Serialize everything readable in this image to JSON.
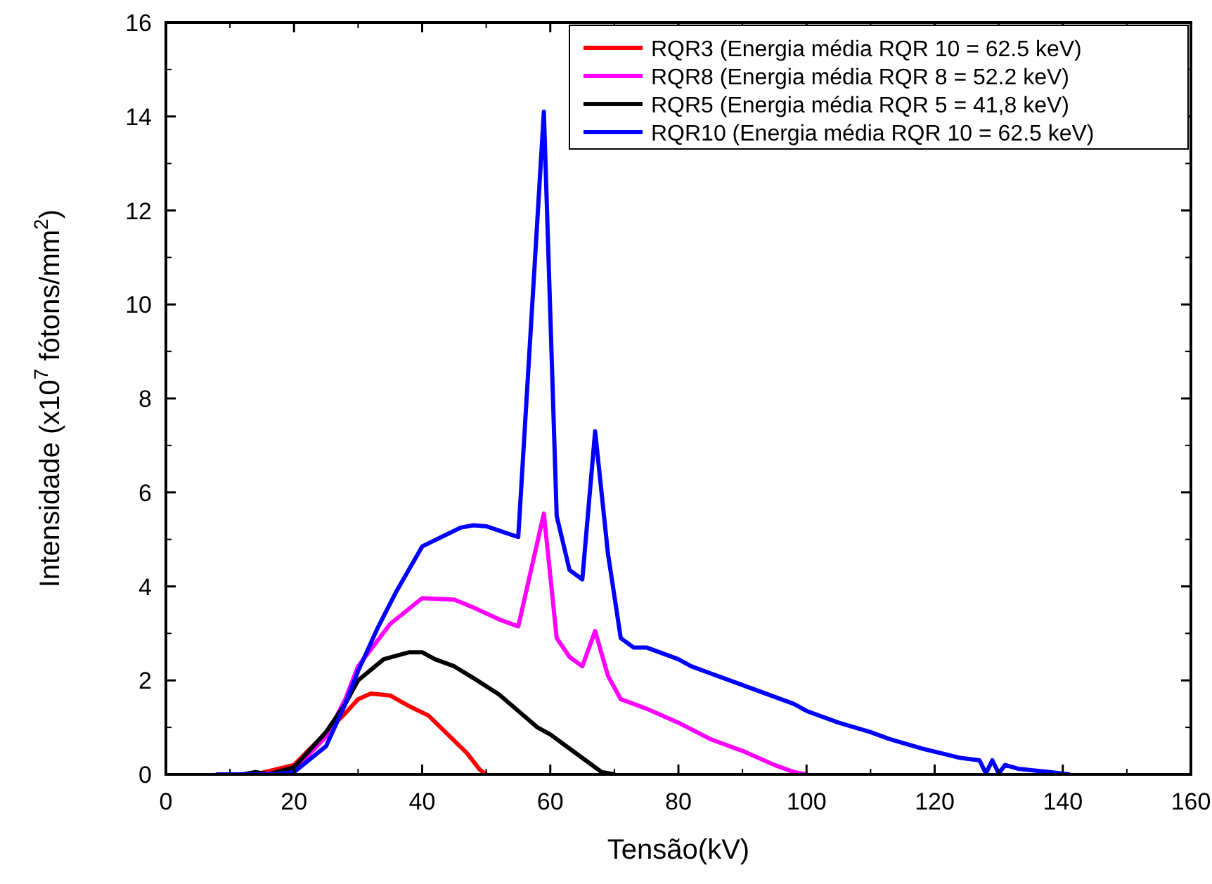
{
  "chart_data": {
    "type": "line",
    "xlabel": "Tensão(kV)",
    "ylabel": "Intensidade (x10$^{7}$ fótons/mm$^{2}$)",
    "xlim": [
      0,
      160
    ],
    "ylim": [
      0,
      16
    ],
    "xticks": [
      0,
      20,
      40,
      60,
      80,
      100,
      120,
      140,
      160
    ],
    "yticks": [
      0,
      2,
      4,
      6,
      8,
      10,
      12,
      14,
      16
    ],
    "grid": false,
    "legend": "top right",
    "line_style": "solid",
    "marker": "none",
    "series": [
      {
        "name": "RQR3 (Energia média RQR 10 = 62.5 keV)",
        "color": "#ff0000",
        "x": [
          14,
          20,
          28,
          30,
          32,
          35,
          38,
          41,
          44,
          47,
          49,
          50
        ],
        "values": [
          0,
          0.2,
          1.3,
          1.6,
          1.72,
          1.68,
          1.45,
          1.25,
          0.85,
          0.45,
          0.1,
          0
        ]
      },
      {
        "name": "RQR8 (Energia média RQR 8 = 52.2 keV)",
        "color": "#ff00ff",
        "x": [
          15,
          20,
          25,
          28,
          30,
          35,
          40,
          45,
          48,
          52,
          55,
          59,
          61,
          63,
          65,
          67,
          69,
          71,
          75,
          80,
          85,
          90,
          95,
          98,
          100
        ],
        "values": [
          0,
          0.1,
          0.8,
          1.6,
          2.3,
          3.2,
          3.75,
          3.72,
          3.55,
          3.3,
          3.15,
          5.55,
          2.9,
          2.5,
          2.3,
          3.05,
          2.1,
          1.6,
          1.4,
          1.1,
          0.75,
          0.5,
          0.2,
          0.05,
          0
        ]
      },
      {
        "name": "RQR5 (Energia média RQR 5 = 41,8 keV)",
        "color": "#000000",
        "x": [
          12,
          14,
          16,
          20,
          25,
          28,
          30,
          34,
          38,
          40,
          42,
          45,
          48,
          52,
          55,
          58,
          60,
          63,
          66,
          68,
          70
        ],
        "values": [
          0,
          0.05,
          0,
          0.15,
          0.9,
          1.5,
          2.0,
          2.45,
          2.6,
          2.6,
          2.45,
          2.3,
          2.05,
          1.7,
          1.35,
          1.0,
          0.85,
          0.55,
          0.25,
          0.05,
          0
        ]
      },
      {
        "name": "RQR10 (Energia média RQR 10 = 62.5 keV)",
        "color": "#0000ff",
        "x": [
          8,
          17,
          20,
          25,
          28,
          30,
          33,
          36,
          40,
          43,
          46,
          48,
          50,
          55,
          59,
          61,
          63,
          65,
          67,
          69,
          71,
          73,
          75,
          80,
          82,
          85,
          90,
          95,
          98,
          100,
          105,
          110,
          113,
          118,
          121,
          124,
          127,
          128,
          129,
          130,
          131,
          133,
          138,
          141
        ],
        "values": [
          0,
          0,
          0.05,
          0.6,
          1.5,
          2.2,
          3.1,
          3.9,
          4.85,
          5.05,
          5.25,
          5.3,
          5.28,
          5.05,
          14.1,
          5.5,
          4.35,
          4.15,
          7.3,
          4.7,
          2.9,
          2.7,
          2.7,
          2.45,
          2.3,
          2.15,
          1.9,
          1.65,
          1.5,
          1.35,
          1.1,
          0.9,
          0.75,
          0.55,
          0.45,
          0.35,
          0.3,
          0.02,
          0.3,
          0.02,
          0.2,
          0.12,
          0.05,
          0
        ]
      }
    ]
  }
}
